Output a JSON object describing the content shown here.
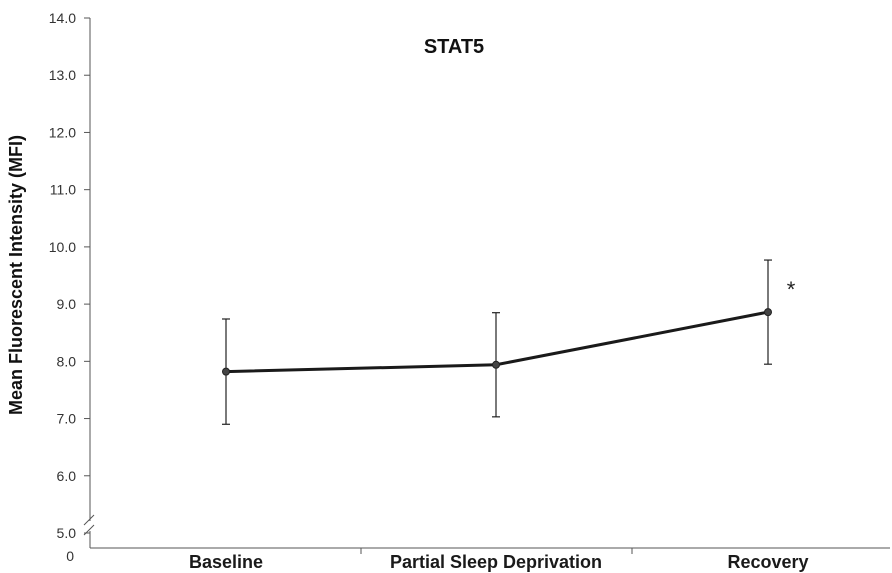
{
  "chart_data": {
    "type": "line",
    "title": "STAT5",
    "ylabel": "Mean Fluorescent Intensity (MFI)",
    "xlabel": "",
    "categories": [
      "Baseline",
      "Partial Sleep Deprivation",
      "Recovery"
    ],
    "series": [
      {
        "values": [
          7.82,
          7.94,
          8.86
        ],
        "error": [
          0.92,
          0.91,
          0.91
        ]
      }
    ],
    "yticks": [
      "5.0",
      "6.0",
      "7.0",
      "8.0",
      "9.0",
      "10.0",
      "11.0",
      "12.0",
      "13.0",
      "14.0"
    ],
    "ylim": [
      5.0,
      14.0
    ],
    "origin_label": "0",
    "axis_break": true,
    "grid": false,
    "annotations": [
      {
        "text": "*",
        "category": "Recovery"
      }
    ],
    "colors": {
      "line": "#1a1a1a",
      "axis": "#555555",
      "marker": "#444444"
    }
  }
}
